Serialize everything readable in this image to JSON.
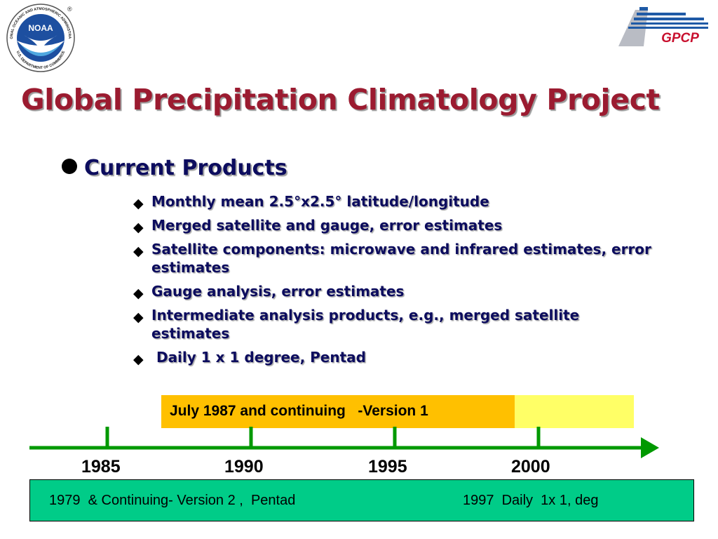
{
  "logos": {
    "noaa": {
      "center_text": "NOAA",
      "ring_text": "NATIONAL OCEANIC AND ATMOSPHERIC ADMINISTRATION",
      "bottom_text": "U.S. DEPARTMENT OF COMMERCE",
      "registered": "®"
    },
    "gpcp": {
      "text": "GPCP"
    }
  },
  "title": "Global Precipitation Climatology Project",
  "section": {
    "heading": "Current Products",
    "items": [
      "Monthly mean 2.5°x2.5° latitude/longitude",
      "Merged satellite and gauge,  error estimates",
      "Satellite components: microwave and infrared estimates, error estimates",
      "Gauge analysis, error estimates",
      "Intermediate analysis products, e.g., merged satellite estimates",
      " Daily 1 x 1 degree, Pentad"
    ]
  },
  "timeline": {
    "banner": "July 1987 and continuing   -Version 1",
    "years": [
      "1985",
      "1990",
      "1995",
      "2000"
    ],
    "box_left": "1979  & Continuing- Version 2 ,  Pentad",
    "box_right": "1997  Daily  1x 1, deg"
  },
  "colors": {
    "title": "#9b1b30",
    "body_text": "#0c0c5e",
    "timeline_green": "#009900",
    "box_green": "#00cc88",
    "banner_orange": "#ffc000",
    "banner_yellow": "#ffff66",
    "gpcp_red": "#c8102e",
    "gpcp_blue": "#1f5aa6"
  },
  "icons": {
    "main_bullet": "filled-circle-bullet",
    "sub_bullet": "diamond-bullet",
    "timeline_arrow": "arrow-right-icon"
  }
}
